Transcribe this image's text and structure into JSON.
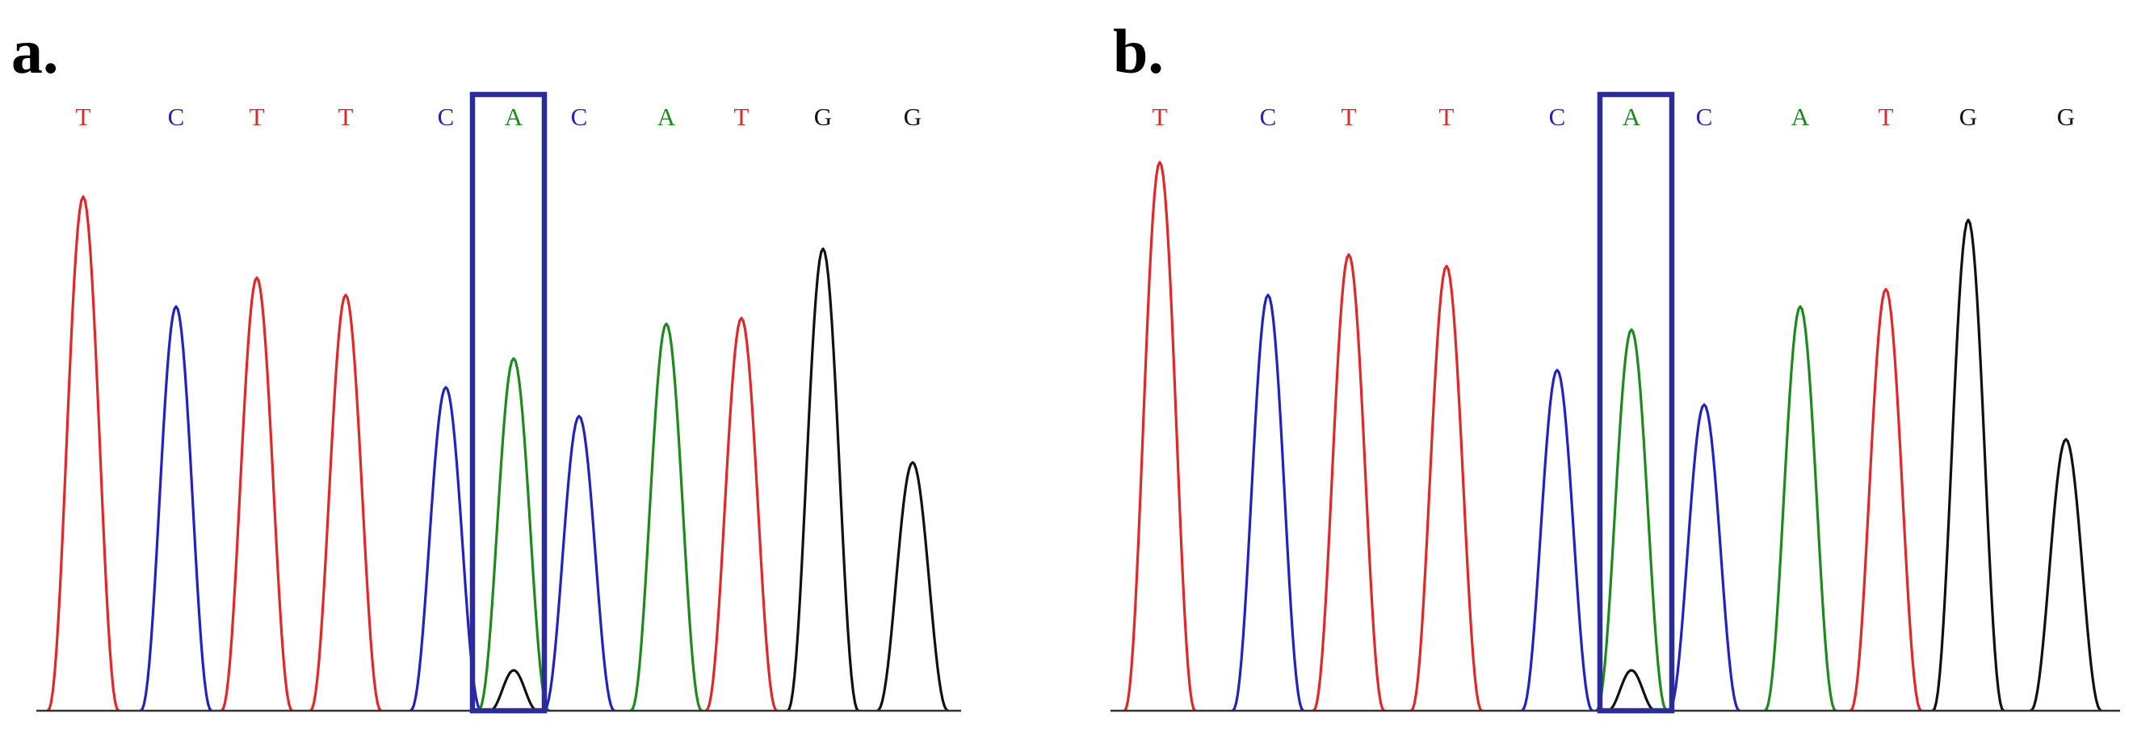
{
  "colors": {
    "A": "#1c8a1c",
    "C": "#2222c0",
    "G": "#111111",
    "T": "#e02828",
    "highlight": "#2b2b9a",
    "baseline": "#333333"
  },
  "panels": [
    {
      "label": "a.",
      "bases": [
        "T",
        "C",
        "T",
        "T",
        "C",
        "A",
        "C",
        "A",
        "T",
        "G",
        "G"
      ],
      "highlight_index": 5,
      "peak_heights": [
        0.89,
        0.7,
        0.75,
        0.72,
        0.56,
        0.61,
        0.51,
        0.67,
        0.68,
        0.8,
        0.43
      ],
      "minor_peaks": [
        {
          "index": 5,
          "base": "G",
          "height": 0.07
        }
      ]
    },
    {
      "label": "b.",
      "bases": [
        "T",
        "C",
        "T",
        "T",
        "C",
        "A",
        "C",
        "A",
        "T",
        "G",
        "G"
      ],
      "highlight_index": 5,
      "peak_heights": [
        0.95,
        0.72,
        0.79,
        0.77,
        0.59,
        0.66,
        0.53,
        0.7,
        0.73,
        0.85,
        0.47
      ],
      "minor_peaks": [
        {
          "index": 5,
          "base": "G",
          "height": 0.07
        }
      ]
    }
  ]
}
